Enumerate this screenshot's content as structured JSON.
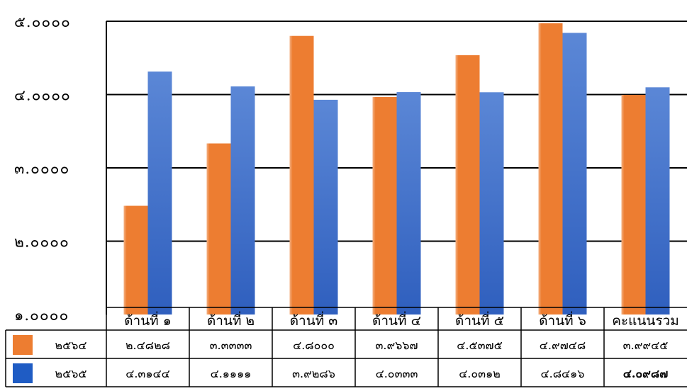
{
  "chart_data": {
    "type": "bar",
    "categories": [
      "ด้านที่ ๑",
      "ด้านที่ ๒",
      "ด้านที่ ๓",
      "ด้านที่ ๔",
      "ด้านที่ ๕",
      "ด้านที่ ๖",
      "คะแนนรวม"
    ],
    "series": [
      {
        "name": "๒๕๖๔",
        "color": "#ED7D31",
        "values": [
          2.4828,
          3.3333,
          4.8,
          3.9667,
          4.5375,
          4.9748,
          3.9945
        ],
        "labels": [
          "๒.๔๘๒๘",
          "๓.๓๓๓๓",
          "๔.๘๐๐๐",
          "๓.๙๖๖๗",
          "๔.๕๓๗๕",
          "๔.๙๗๔๘",
          "๓.๙๙๔๕"
        ]
      },
      {
        "name": "๒๕๖๕",
        "color": "#4472C4",
        "values": [
          4.3144,
          4.1111,
          3.9286,
          4.0333,
          4.0312,
          4.8416,
          4.0987
        ],
        "labels": [
          "๔.๓๑๔๔",
          "๔.๑๑๑๑",
          "๓.๙๒๘๖",
          "๔.๐๓๓๓",
          "๔.๐๓๑๒",
          "๔.๘๔๑๖",
          "๔.๐๙๘๗"
        ]
      }
    ],
    "ylim": [
      1,
      5
    ],
    "yticks": [
      1,
      2,
      3,
      4,
      5
    ],
    "ytick_labels": [
      "๑.๐๐๐๐",
      "๒.๐๐๐๐",
      "๓.๐๐๐๐",
      "๔.๐๐๐๐",
      "๕.๐๐๐๐"
    ],
    "grid": true,
    "legend": "data-table"
  }
}
